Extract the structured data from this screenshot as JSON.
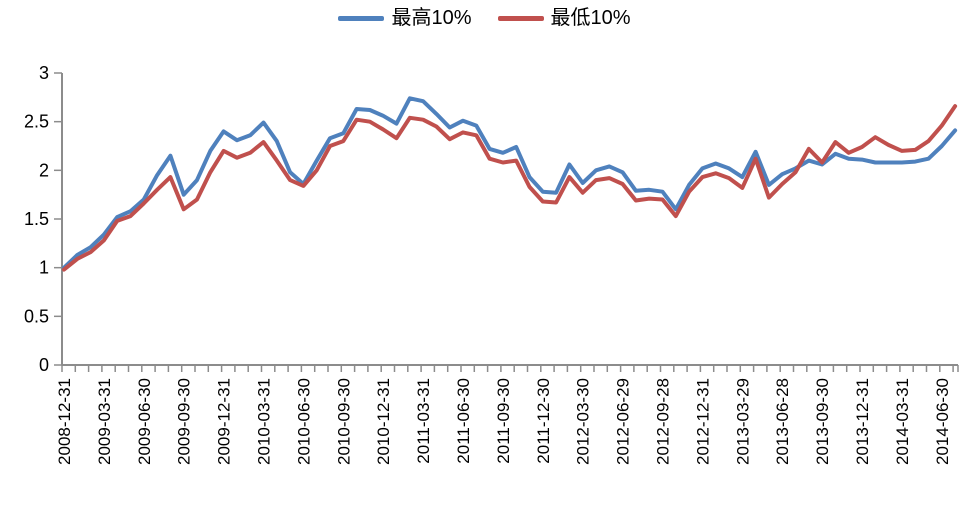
{
  "chart_data": {
    "type": "line",
    "title": "",
    "legend_position": "top-center",
    "grid": false,
    "background": "#FFFFFF",
    "axis_color": "#8C8C8C",
    "text_color": "#000000",
    "ylim": [
      0,
      3
    ],
    "y_tick_labels": [
      "0",
      "0.5",
      "1",
      "1.5",
      "2",
      "2.5",
      "3"
    ],
    "x_points_per_label": 3,
    "x_tick_labels": [
      "2008-12-31",
      "2009-03-31",
      "2009-06-30",
      "2009-09-30",
      "2009-12-31",
      "2010-03-31",
      "2010-06-30",
      "2010-09-30",
      "2010-12-31",
      "2011-03-31",
      "2011-06-30",
      "2011-09-30",
      "2011-12-30",
      "2012-03-30",
      "2012-06-29",
      "2012-09-28",
      "2012-12-31",
      "2013-03-29",
      "2013-06-28",
      "2013-09-30",
      "2013-12-31",
      "2014-03-31",
      "2014-06-30"
    ],
    "series": [
      {
        "name": "最高10%",
        "color": "#4F81BD",
        "values": [
          1.0,
          1.13,
          1.21,
          1.34,
          1.52,
          1.58,
          1.7,
          1.95,
          2.15,
          1.75,
          1.9,
          2.2,
          2.4,
          2.31,
          2.36,
          2.49,
          2.3,
          1.98,
          1.86,
          2.1,
          2.33,
          2.38,
          2.63,
          2.62,
          2.56,
          2.48,
          2.74,
          2.71,
          2.58,
          2.44,
          2.51,
          2.46,
          2.22,
          2.18,
          2.24,
          1.93,
          1.78,
          1.77,
          2.06,
          1.87,
          2.0,
          2.04,
          1.98,
          1.79,
          1.8,
          1.78,
          1.6,
          1.85,
          2.02,
          2.07,
          2.02,
          1.93,
          2.19,
          1.85,
          1.96,
          2.02,
          2.1,
          2.06,
          2.17,
          2.12,
          2.11,
          2.08,
          2.08,
          2.08,
          2.09,
          2.12,
          2.25,
          2.41
        ]
      },
      {
        "name": "最低10%",
        "color": "#C0504D",
        "values": [
          0.98,
          1.09,
          1.16,
          1.28,
          1.48,
          1.53,
          1.66,
          1.8,
          1.93,
          1.6,
          1.7,
          1.98,
          2.2,
          2.13,
          2.18,
          2.29,
          2.1,
          1.9,
          1.84,
          2.0,
          2.25,
          2.3,
          2.52,
          2.5,
          2.42,
          2.33,
          2.54,
          2.52,
          2.45,
          2.32,
          2.39,
          2.36,
          2.12,
          2.08,
          2.1,
          1.83,
          1.68,
          1.67,
          1.93,
          1.77,
          1.9,
          1.92,
          1.86,
          1.69,
          1.71,
          1.7,
          1.53,
          1.78,
          1.93,
          1.97,
          1.92,
          1.82,
          2.12,
          1.72,
          1.86,
          1.98,
          2.22,
          2.08,
          2.29,
          2.18,
          2.24,
          2.34,
          2.26,
          2.2,
          2.21,
          2.3,
          2.46,
          2.66
        ]
      }
    ]
  }
}
